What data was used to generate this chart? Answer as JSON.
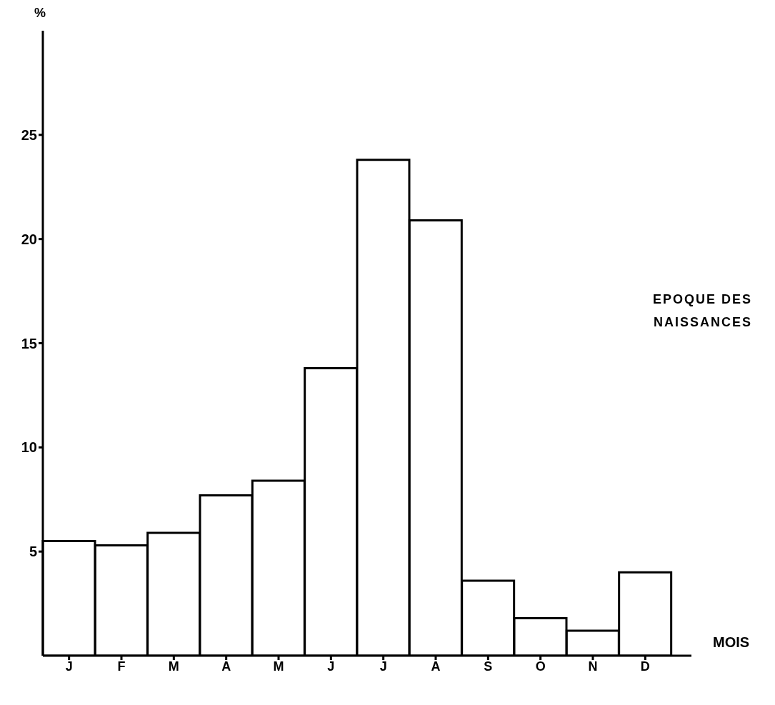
{
  "chart_data": {
    "type": "bar",
    "ylabel": "%",
    "xlabel": "MOIS",
    "categories": [
      "J",
      "F",
      "M",
      "A",
      "M",
      "J",
      "J",
      "A",
      "S",
      "O",
      "N",
      "D"
    ],
    "values": [
      5.5,
      5.3,
      5.9,
      7.7,
      8.4,
      13.8,
      23.8,
      20.9,
      3.6,
      1.8,
      1.2,
      4.0
    ],
    "color": "#ffffff",
    "ylim": [
      0,
      30
    ],
    "yticks": [
      5,
      10,
      15,
      20,
      25
    ],
    "annotations": [
      "EPOQUE DES NAISSANCES"
    ]
  }
}
